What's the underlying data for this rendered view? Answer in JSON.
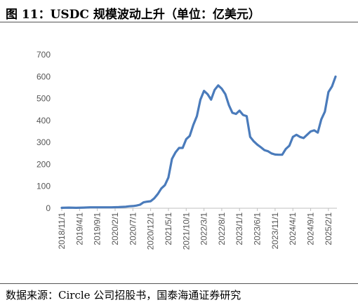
{
  "title": "图 11：USDC 规模波动上升（单位：亿美元）",
  "source": "数据来源：Circle 公司招股书，国泰海通证券研究",
  "colors": {
    "line": "#4a7bbb",
    "axis": "#bfbfbf",
    "text": "#555555"
  },
  "chart_data": {
    "type": "line",
    "title": "USDC 规模波动上升（单位：亿美元）",
    "xlabel": "",
    "ylabel": "",
    "ylim": [
      0,
      700
    ],
    "yticks": [
      0,
      100,
      200,
      300,
      400,
      500,
      600,
      700
    ],
    "xticks": [
      "2018/11/1",
      "2019/4/1",
      "2019/9/1",
      "2020/2/1",
      "2020/7/1",
      "2020/12/1",
      "2021/5/1",
      "2021/10/1",
      "2022/3/1",
      "2022/8/1",
      "2023/1/1",
      "2023/6/1",
      "2023/11/1",
      "2024/4/1",
      "2024/9/1",
      "2025/2/1"
    ],
    "grid": false,
    "legend": "none",
    "series": [
      {
        "values": [
          [
            "2018/11/1",
            2
          ],
          [
            "2019/1/1",
            3
          ],
          [
            "2019/3/1",
            2
          ],
          [
            "2019/5/1",
            3
          ],
          [
            "2019/7/1",
            4
          ],
          [
            "2019/9/1",
            4
          ],
          [
            "2019/11/1",
            4
          ],
          [
            "2020/1/1",
            4
          ],
          [
            "2020/3/1",
            5
          ],
          [
            "2020/4/1",
            6
          ],
          [
            "2020/5/1",
            7
          ],
          [
            "2020/6/1",
            9
          ],
          [
            "2020/7/1",
            10
          ],
          [
            "2020/8/1",
            12
          ],
          [
            "2020/9/1",
            16
          ],
          [
            "2020/10/1",
            27
          ],
          [
            "2020/11/1",
            30
          ],
          [
            "2020/12/1",
            32
          ],
          [
            "2021/1/1",
            45
          ],
          [
            "2021/2/1",
            65
          ],
          [
            "2021/3/1",
            90
          ],
          [
            "2021/4/1",
            105
          ],
          [
            "2021/5/1",
            140
          ],
          [
            "2021/6/1",
            225
          ],
          [
            "2021/7/1",
            255
          ],
          [
            "2021/8/1",
            275
          ],
          [
            "2021/9/1",
            275
          ],
          [
            "2021/10/1",
            315
          ],
          [
            "2021/11/1",
            330
          ],
          [
            "2021/12/1",
            380
          ],
          [
            "2022/1/1",
            420
          ],
          [
            "2022/2/1",
            495
          ],
          [
            "2022/3/1",
            535
          ],
          [
            "2022/4/1",
            520
          ],
          [
            "2022/5/1",
            495
          ],
          [
            "2022/6/1",
            540
          ],
          [
            "2022/7/1",
            560
          ],
          [
            "2022/8/1",
            545
          ],
          [
            "2022/9/1",
            520
          ],
          [
            "2022/10/1",
            470
          ],
          [
            "2022/11/1",
            435
          ],
          [
            "2022/12/1",
            430
          ],
          [
            "2023/1/1",
            445
          ],
          [
            "2023/2/1",
            425
          ],
          [
            "2023/3/1",
            420
          ],
          [
            "2023/4/1",
            325
          ],
          [
            "2023/5/1",
            305
          ],
          [
            "2023/6/1",
            290
          ],
          [
            "2023/7/1",
            278
          ],
          [
            "2023/8/1",
            265
          ],
          [
            "2023/9/1",
            260
          ],
          [
            "2023/10/1",
            250
          ],
          [
            "2023/11/1",
            245
          ],
          [
            "2023/12/1",
            244
          ],
          [
            "2024/1/1",
            244
          ],
          [
            "2024/2/1",
            270
          ],
          [
            "2024/3/1",
            285
          ],
          [
            "2024/4/1",
            325
          ],
          [
            "2024/5/1",
            335
          ],
          [
            "2024/6/1",
            325
          ],
          [
            "2024/7/1",
            320
          ],
          [
            "2024/8/1",
            335
          ],
          [
            "2024/9/1",
            350
          ],
          [
            "2024/10/1",
            355
          ],
          [
            "2024/11/1",
            345
          ],
          [
            "2024/12/1",
            405
          ],
          [
            "2025/1/1",
            440
          ],
          [
            "2025/2/1",
            530
          ],
          [
            "2025/3/1",
            555
          ],
          [
            "2025/4/1",
            600
          ]
        ]
      }
    ]
  }
}
